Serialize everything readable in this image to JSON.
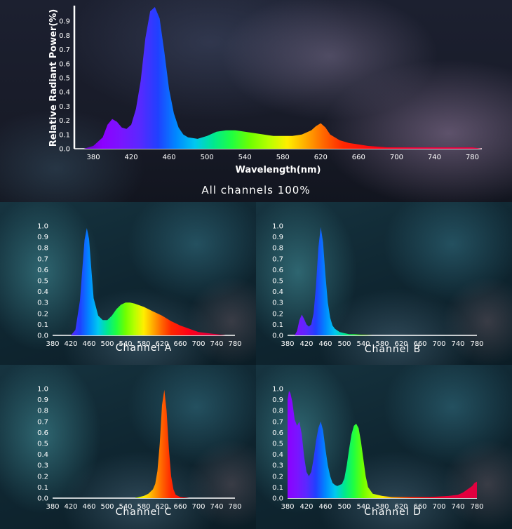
{
  "chart_data": [
    {
      "type": "area",
      "caption": "All channels 100%",
      "xlabel": "Wavelength(nm)",
      "ylabel": "Relative Radiant Power(%)",
      "xlim": [
        360,
        790
      ],
      "ylim": [
        0,
        1.0
      ],
      "x_ticks": [
        "380",
        "420",
        "460",
        "500",
        "540",
        "580",
        "620",
        "660",
        "700",
        "740",
        "780"
      ],
      "y_ticks": [
        "0.0",
        "0.1",
        "0.2",
        "0.3",
        "0.4",
        "0.5",
        "0.6",
        "0.7",
        "0.8",
        "0.9"
      ],
      "series": [
        {
          "x": [
            370,
            380,
            390,
            395,
            400,
            405,
            410,
            415,
            420,
            425,
            430,
            435,
            440,
            445,
            450,
            455,
            460,
            465,
            470,
            475,
            480,
            490,
            500,
            510,
            520,
            530,
            540,
            550,
            560,
            570,
            580,
            590,
            600,
            610,
            615,
            620,
            625,
            630,
            640,
            650,
            660,
            670,
            680,
            690,
            700,
            720,
            740,
            760,
            780,
            790
          ],
          "values": [
            0.0,
            0.02,
            0.08,
            0.17,
            0.21,
            0.19,
            0.15,
            0.14,
            0.17,
            0.28,
            0.48,
            0.78,
            0.97,
            1.0,
            0.92,
            0.68,
            0.42,
            0.25,
            0.15,
            0.1,
            0.08,
            0.07,
            0.09,
            0.12,
            0.13,
            0.13,
            0.12,
            0.11,
            0.1,
            0.09,
            0.09,
            0.09,
            0.1,
            0.13,
            0.16,
            0.18,
            0.15,
            0.1,
            0.06,
            0.04,
            0.03,
            0.02,
            0.015,
            0.01,
            0.01,
            0.01,
            0.01,
            0.01,
            0.01,
            0.0
          ]
        }
      ]
    },
    {
      "type": "area",
      "caption": "Channel A",
      "xlim": [
        380,
        780
      ],
      "ylim": [
        0,
        1.0
      ],
      "x_ticks": [
        "380",
        "420",
        "460",
        "500",
        "540",
        "580",
        "620",
        "660",
        "700",
        "740",
        "780"
      ],
      "y_ticks": [
        "0.0",
        "0.1",
        "0.2",
        "0.3",
        "0.4",
        "0.5",
        "0.6",
        "0.7",
        "0.8",
        "0.9",
        "1.0"
      ],
      "series": [
        {
          "x": [
            380,
            420,
            430,
            440,
            445,
            450,
            455,
            460,
            465,
            470,
            480,
            490,
            500,
            510,
            520,
            530,
            540,
            550,
            560,
            580,
            600,
            620,
            640,
            660,
            680,
            700,
            720,
            740,
            760,
            780
          ],
          "values": [
            0.0,
            0.0,
            0.05,
            0.32,
            0.6,
            0.87,
            0.98,
            0.88,
            0.6,
            0.34,
            0.18,
            0.14,
            0.14,
            0.18,
            0.24,
            0.28,
            0.3,
            0.3,
            0.29,
            0.26,
            0.22,
            0.18,
            0.13,
            0.09,
            0.06,
            0.03,
            0.02,
            0.01,
            0.0,
            0.0
          ]
        }
      ]
    },
    {
      "type": "area",
      "caption": "Channel B",
      "xlim": [
        380,
        780
      ],
      "ylim": [
        0,
        1.0
      ],
      "x_ticks": [
        "380",
        "420",
        "460",
        "500",
        "540",
        "580",
        "620",
        "660",
        "700",
        "740",
        "780"
      ],
      "y_ticks": [
        "0.0",
        "0.1",
        "0.2",
        "0.3",
        "0.4",
        "0.5",
        "0.6",
        "0.7",
        "0.8",
        "0.9",
        "1.0"
      ],
      "series": [
        {
          "x": [
            380,
            395,
            400,
            405,
            410,
            415,
            420,
            425,
            430,
            435,
            440,
            445,
            450,
            455,
            460,
            465,
            470,
            475,
            480,
            490,
            500,
            510,
            520,
            560,
            600,
            640,
            700,
            780
          ],
          "values": [
            0.0,
            0.0,
            0.04,
            0.14,
            0.19,
            0.15,
            0.1,
            0.08,
            0.1,
            0.2,
            0.45,
            0.8,
            0.99,
            0.85,
            0.55,
            0.3,
            0.16,
            0.09,
            0.06,
            0.03,
            0.02,
            0.01,
            0.01,
            0.0,
            0.0,
            0.0,
            0.0,
            0.0
          ]
        }
      ]
    },
    {
      "type": "area",
      "caption": "Channel C",
      "xlim": [
        380,
        780
      ],
      "ylim": [
        0,
        1.0
      ],
      "x_ticks": [
        "380",
        "420",
        "460",
        "500",
        "540",
        "580",
        "620",
        "660",
        "700",
        "740",
        "780"
      ],
      "y_ticks": [
        "0.0",
        "0.1",
        "0.2",
        "0.3",
        "0.4",
        "0.5",
        "0.6",
        "0.7",
        "0.8",
        "0.9",
        "1.0"
      ],
      "series": [
        {
          "x": [
            380,
            560,
            570,
            580,
            590,
            600,
            605,
            610,
            615,
            620,
            625,
            630,
            635,
            640,
            645,
            650,
            660,
            680,
            780
          ],
          "values": [
            0.0,
            0.0,
            0.01,
            0.02,
            0.04,
            0.08,
            0.13,
            0.25,
            0.5,
            0.85,
            0.99,
            0.8,
            0.45,
            0.2,
            0.08,
            0.03,
            0.01,
            0.0,
            0.0
          ]
        }
      ]
    },
    {
      "type": "area",
      "caption": "Channel D",
      "xlim": [
        380,
        780
      ],
      "ylim": [
        0,
        1.0
      ],
      "x_ticks": [
        "380",
        "420",
        "460",
        "500",
        "540",
        "580",
        "620",
        "660",
        "700",
        "740",
        "780"
      ],
      "y_ticks": [
        "0.0",
        "0.1",
        "0.2",
        "0.3",
        "0.4",
        "0.5",
        "0.6",
        "0.7",
        "0.8",
        "0.9",
        "1.0"
      ],
      "series": [
        {
          "x": [
            380,
            383,
            386,
            390,
            395,
            400,
            405,
            410,
            415,
            420,
            425,
            430,
            435,
            440,
            445,
            450,
            455,
            460,
            465,
            470,
            475,
            480,
            485,
            490,
            495,
            500,
            505,
            510,
            515,
            520,
            525,
            530,
            535,
            540,
            545,
            550,
            560,
            580,
            600,
            640,
            680,
            720,
            740,
            750,
            760,
            770,
            775,
            780
          ],
          "values": [
            0.9,
            0.98,
            0.96,
            0.88,
            0.72,
            0.66,
            0.7,
            0.58,
            0.38,
            0.24,
            0.2,
            0.24,
            0.36,
            0.52,
            0.64,
            0.7,
            0.62,
            0.45,
            0.3,
            0.2,
            0.14,
            0.12,
            0.11,
            0.12,
            0.13,
            0.18,
            0.3,
            0.45,
            0.58,
            0.66,
            0.68,
            0.64,
            0.52,
            0.36,
            0.2,
            0.1,
            0.04,
            0.02,
            0.01,
            0.01,
            0.01,
            0.02,
            0.03,
            0.05,
            0.08,
            0.11,
            0.14,
            0.15
          ]
        }
      ]
    }
  ]
}
